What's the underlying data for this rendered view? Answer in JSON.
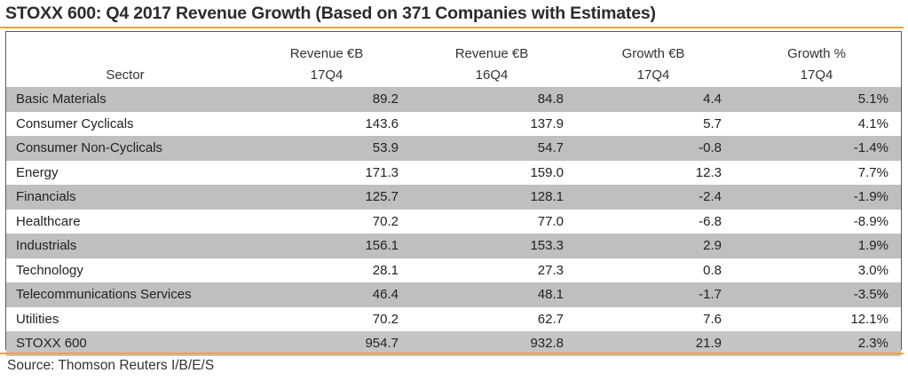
{
  "title": "STOXX 600: Q4 2017 Revenue Growth (Based on 371 Companies with Estimates)",
  "source": "Source: Thomson Reuters I/B/E/S",
  "colors": {
    "accent_rule": "#f0a33a",
    "shaded_row": "#bfbfbf"
  },
  "chart_data": {
    "type": "table",
    "title": "STOXX 600: Q4 2017 Revenue Growth (Based on 371 Companies with Estimates)",
    "header_top": [
      "",
      "Revenue €B",
      "Revenue €B",
      "Growth €B",
      "Growth %"
    ],
    "header_bottom": [
      "Sector",
      "17Q4",
      "16Q4",
      "17Q4",
      "17Q4"
    ],
    "rows": [
      {
        "sector": "Basic Materials",
        "rev_17q4": "89.2",
        "rev_16q4": "84.8",
        "growth_eur": "4.4",
        "growth_pct": "5.1%"
      },
      {
        "sector": "Consumer Cyclicals",
        "rev_17q4": "143.6",
        "rev_16q4": "137.9",
        "growth_eur": "5.7",
        "growth_pct": "4.1%"
      },
      {
        "sector": "Consumer Non-Cyclicals",
        "rev_17q4": "53.9",
        "rev_16q4": "54.7",
        "growth_eur": "-0.8",
        "growth_pct": "-1.4%"
      },
      {
        "sector": "Energy",
        "rev_17q4": "171.3",
        "rev_16q4": "159.0",
        "growth_eur": "12.3",
        "growth_pct": "7.7%"
      },
      {
        "sector": "Financials",
        "rev_17q4": "125.7",
        "rev_16q4": "128.1",
        "growth_eur": "-2.4",
        "growth_pct": "-1.9%"
      },
      {
        "sector": "Healthcare",
        "rev_17q4": "70.2",
        "rev_16q4": "77.0",
        "growth_eur": "-6.8",
        "growth_pct": "-8.9%"
      },
      {
        "sector": "Industrials",
        "rev_17q4": "156.1",
        "rev_16q4": "153.3",
        "growth_eur": "2.9",
        "growth_pct": "1.9%"
      },
      {
        "sector": "Technology",
        "rev_17q4": "28.1",
        "rev_16q4": "27.3",
        "growth_eur": "0.8",
        "growth_pct": "3.0%"
      },
      {
        "sector": "Telecommunications Services",
        "rev_17q4": "46.4",
        "rev_16q4": "48.1",
        "growth_eur": "-1.7",
        "growth_pct": "-3.5%"
      },
      {
        "sector": "Utilities",
        "rev_17q4": "70.2",
        "rev_16q4": "62.7",
        "growth_eur": "7.6",
        "growth_pct": "12.1%"
      },
      {
        "sector": "STOXX 600",
        "rev_17q4": "954.7",
        "rev_16q4": "932.8",
        "growth_eur": "21.9",
        "growth_pct": "2.3%"
      }
    ]
  }
}
